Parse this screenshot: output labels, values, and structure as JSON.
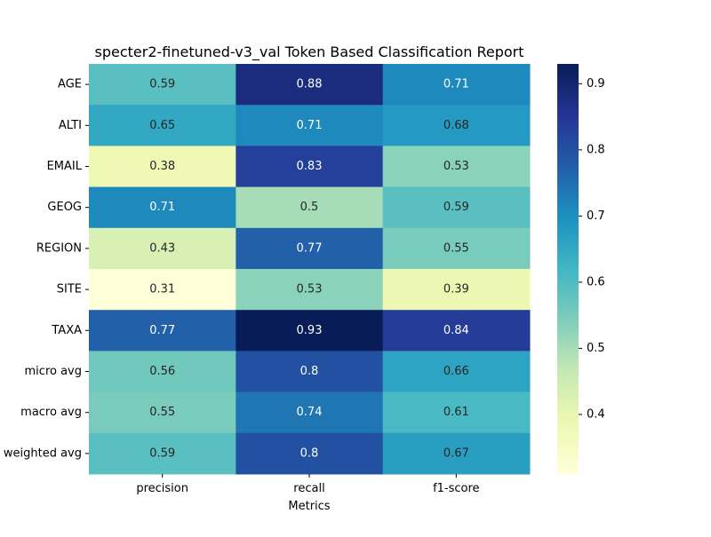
{
  "chart_data": {
    "type": "heatmap",
    "title": "specter2-finetuned-v3_val Token Based Classification Report",
    "xlabel": "Metrics",
    "ylabel": "",
    "x_categories": [
      "precision",
      "recall",
      "f1-score"
    ],
    "y_categories": [
      "AGE",
      "ALTI",
      "EMAIL",
      "GEOG",
      "REGION",
      "SITE",
      "TAXA",
      "micro avg",
      "macro avg",
      "weighted avg"
    ],
    "values": [
      [
        0.59,
        0.88,
        0.71
      ],
      [
        0.65,
        0.71,
        0.68
      ],
      [
        0.38,
        0.83,
        0.53
      ],
      [
        0.71,
        0.5,
        0.59
      ],
      [
        0.43,
        0.77,
        0.55
      ],
      [
        0.31,
        0.53,
        0.39
      ],
      [
        0.77,
        0.93,
        0.84
      ],
      [
        0.56,
        0.8,
        0.66
      ],
      [
        0.55,
        0.74,
        0.61
      ],
      [
        0.59,
        0.8,
        0.67
      ]
    ],
    "colormap": "YlGnBu",
    "colorbar": {
      "vmin": 0.31,
      "vmax": 0.93,
      "ticks": [
        0.4,
        0.5,
        0.6,
        0.7,
        0.8,
        0.9
      ],
      "tick_labels": [
        "0.4",
        "0.5",
        "0.6",
        "0.7",
        "0.8",
        "0.9"
      ]
    },
    "annotations": true,
    "grid": false,
    "legend": "colorbar-right"
  }
}
